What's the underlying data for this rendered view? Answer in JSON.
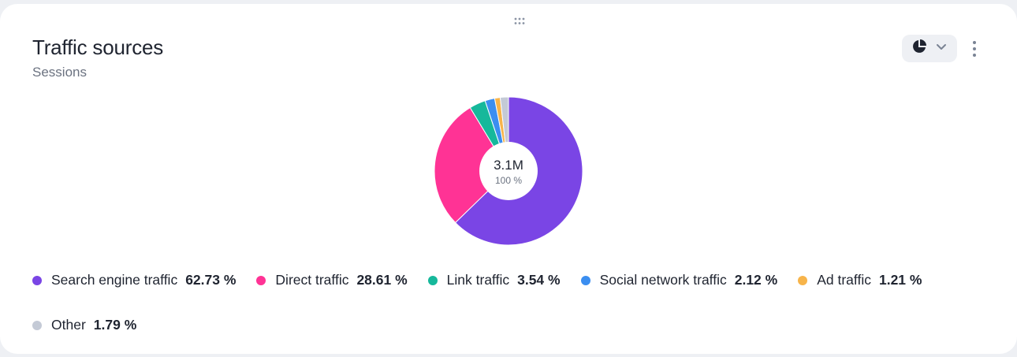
{
  "widget": {
    "title": "Traffic sources",
    "subtitle": "Sessions",
    "chart_type_icon": "pie-chart-icon",
    "dropdown_icon": "chevron-down-icon",
    "menu_icon": "more-vertical-icon",
    "drag_icon": "drag-handle-icon"
  },
  "colors": {
    "card_bg": "#ffffff",
    "page_bg": "#eef0f4",
    "text_primary": "#1f2430",
    "text_secondary": "#6b7280"
  },
  "chart_data": {
    "type": "pie",
    "title": "Traffic sources",
    "subtitle": "Sessions",
    "total_label": "3.1M",
    "total_percent_label": "100 %",
    "legend_placement": "bottom",
    "series": [
      {
        "name": "Search engine traffic",
        "value": 62.73,
        "label": "62.73 %",
        "color": "#7a45e5"
      },
      {
        "name": "Direct traffic",
        "value": 28.61,
        "label": "28.61 %",
        "color": "#ff3395"
      },
      {
        "name": "Link traffic",
        "value": 3.54,
        "label": "3.54 %",
        "color": "#16b89b"
      },
      {
        "name": "Social network traffic",
        "value": 2.12,
        "label": "2.12 %",
        "color": "#3b8ef0"
      },
      {
        "name": "Ad traffic",
        "value": 1.21,
        "label": "1.21 %",
        "color": "#f7b44a"
      },
      {
        "name": "Other",
        "value": 1.79,
        "label": "1.79 %",
        "color": "#c4cad6"
      }
    ]
  }
}
